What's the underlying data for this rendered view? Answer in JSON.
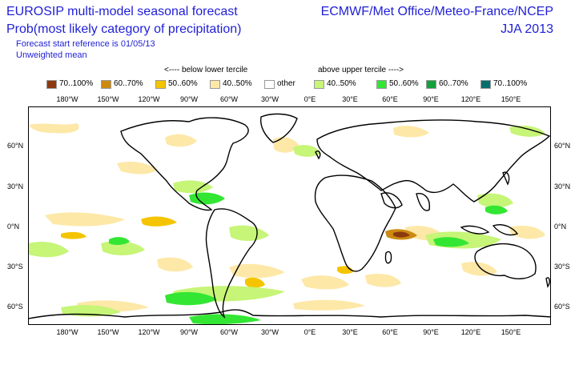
{
  "header": {
    "title_line1": "EUROSIP multi-model seasonal forecast",
    "title_line2": "Prob(most likely category of precipitation)",
    "forecast_ref": "Forecast start reference is 01/05/13",
    "mean_type": "Unweighted mean",
    "agencies": "ECMWF/Met Office/Meteo-France/NCEP",
    "season": "JJA 2013"
  },
  "legend": {
    "below_label": "<---- below lower tercile",
    "above_label": "above upper tercile ---->",
    "items": [
      {
        "label": "70..100%",
        "color": "#8b3a0f"
      },
      {
        "label": "60..70%",
        "color": "#cc8a10"
      },
      {
        "label": "50..60%",
        "color": "#f5c400"
      },
      {
        "label": "40..50%",
        "color": "#fde8a8"
      },
      {
        "label": "other",
        "color": "#ffffff"
      },
      {
        "label": "40..50%",
        "color": "#c6f577"
      },
      {
        "label": "50..60%",
        "color": "#33e633"
      },
      {
        "label": "60..70%",
        "color": "#14a03c"
      },
      {
        "label": "70..100%",
        "color": "#0a6e6e"
      }
    ]
  },
  "axes": {
    "lon_labels": [
      "180°W",
      "150°W",
      "120°W",
      "90°W",
      "60°W",
      "30°W",
      "0°E",
      "30°E",
      "60°E",
      "90°E",
      "120°E",
      "150°E"
    ],
    "lat_labels": [
      "60°N",
      "30°N",
      "0°N",
      "30°S",
      "60°S"
    ]
  }
}
